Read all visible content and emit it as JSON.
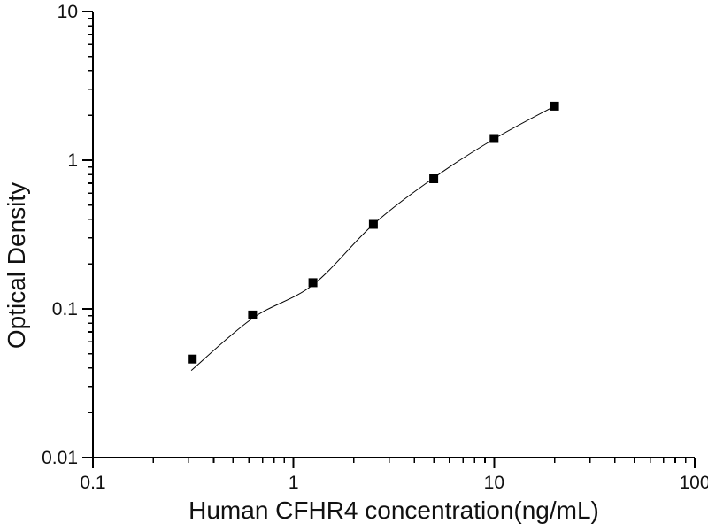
{
  "figure": {
    "background": "#ffffff",
    "axis_color": "#000000"
  },
  "chart_data": {
    "type": "scatter",
    "title": "",
    "xlabel": "Human CFHR4 concentration(ng/mL)",
    "ylabel": "Optical Density",
    "x_scale": "log",
    "y_scale": "log",
    "xlim": [
      0.1,
      100
    ],
    "ylim": [
      0.01,
      10
    ],
    "x_ticks": [
      0.1,
      1,
      10,
      100
    ],
    "x_tick_labels": [
      "0.1",
      "1",
      "10",
      "100"
    ],
    "y_ticks": [
      0.01,
      0.1,
      1,
      10
    ],
    "y_tick_labels": [
      "0.01",
      "0.1",
      "1",
      "10"
    ],
    "grid": false,
    "legend": null,
    "series": [
      {
        "name": "standard-points",
        "type": "scatter",
        "marker": "filled-square",
        "color": "#000000",
        "x": [
          0.3125,
          0.625,
          1.25,
          2.5,
          5,
          10,
          20
        ],
        "y": [
          0.046,
          0.091,
          0.15,
          0.37,
          0.75,
          1.4,
          2.31
        ]
      },
      {
        "name": "fit-line",
        "type": "line",
        "color": "#000000",
        "x": [
          0.309,
          0.625,
          1.25,
          2.5,
          5,
          10,
          20
        ],
        "y": [
          0.0385,
          0.0865,
          0.145,
          0.37,
          0.76,
          1.39,
          2.31
        ]
      }
    ]
  }
}
